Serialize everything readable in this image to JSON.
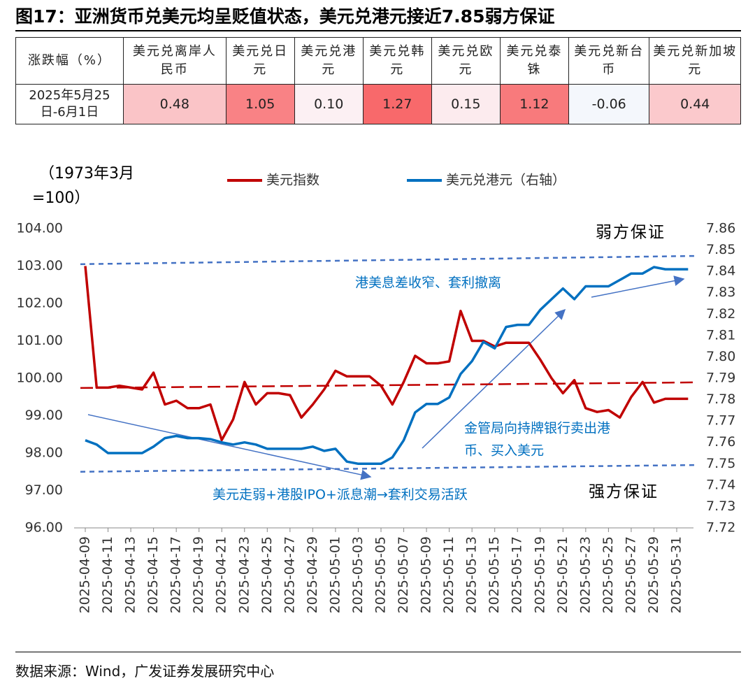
{
  "title": "图17：亚洲货币兑美元均呈贬值状态，美元兑港元接近7.85弱方保证",
  "table": {
    "header": [
      "涨跌幅（%）",
      "美元兑离岸人民币",
      "美元兑日元",
      "美元兑港元",
      "美元兑韩元",
      "美元兑欧元",
      "美元兑泰铢",
      "美元兑新台币",
      "美元兑新加坡元"
    ],
    "rows": [
      [
        "2025年5月25日-6月1日",
        "0.48",
        "1.05",
        "0.10",
        "1.27",
        "0.15",
        "1.12",
        "-0.06",
        "0.44"
      ]
    ]
  },
  "chart_data": {
    "type": "line",
    "y_label": [
      "（1973年3月",
      "=100）"
    ],
    "categories": [
      "2025-04-09",
      null,
      "2025-04-11",
      null,
      "2025-04-13",
      null,
      "2025-04-15",
      null,
      "2025-04-17",
      null,
      "2025-04-19",
      null,
      "2025-04-21",
      null,
      "2025-04-23",
      null,
      "2025-04-25",
      null,
      "2025-04-27",
      null,
      "2025-04-29",
      null,
      "2025-05-01",
      null,
      "2025-05-03",
      null,
      "2025-05-05",
      null,
      "2025-05-07",
      null,
      "2025-05-09",
      null,
      "2025-05-11",
      null,
      "2025-05-13",
      null,
      "2025-05-15",
      null,
      "2025-05-17",
      null,
      "2025-05-19",
      null,
      "2025-05-21",
      null,
      "2025-05-23",
      null,
      "2025-05-25",
      null,
      "2025-05-27",
      null,
      "2025-05-29",
      null,
      "2025-05-31",
      null
    ],
    "series": [
      {
        "name": "美元指数",
        "color": "#c00000",
        "values": [
          103.0,
          99.75,
          99.75,
          99.8,
          99.75,
          99.7,
          100.15,
          99.3,
          99.4,
          99.2,
          99.2,
          99.3,
          98.35,
          98.9,
          99.9,
          99.3,
          99.6,
          99.6,
          99.55,
          98.95,
          99.3,
          99.7,
          100.2,
          100.05,
          100.05,
          100.05,
          99.8,
          99.3,
          99.9,
          100.6,
          100.4,
          100.4,
          100.45,
          101.8,
          101.0,
          101.0,
          100.85,
          100.95,
          100.95,
          100.95,
          100.5,
          100.0,
          99.6,
          99.95,
          99.2,
          99.1,
          99.15,
          98.95,
          99.5,
          99.9,
          99.35,
          99.45,
          99.45,
          99.45
        ]
      },
      {
        "name": "美元兑港元（右轴）",
        "color": "#0070c0",
        "axis": "y2",
        "values": [
          7.761,
          7.759,
          7.755,
          7.755,
          7.755,
          7.755,
          7.758,
          7.762,
          7.763,
          7.762,
          7.762,
          7.7615,
          7.76,
          7.759,
          7.76,
          7.759,
          7.757,
          7.757,
          7.757,
          7.757,
          7.758,
          7.756,
          7.757,
          7.751,
          7.75,
          7.75,
          7.75,
          7.753,
          7.761,
          7.774,
          7.778,
          7.778,
          7.781,
          7.792,
          7.798,
          7.807,
          7.804,
          7.814,
          7.815,
          7.815,
          7.822,
          7.827,
          7.832,
          7.827,
          7.833,
          7.833,
          7.833,
          7.836,
          7.839,
          7.839,
          7.842,
          7.841,
          7.841,
          7.841
        ]
      }
    ],
    "trend_lines": [
      {
        "color": "#c00000",
        "values": [
          99.74,
          99.89
        ]
      },
      {
        "color": "#4472c4",
        "values": [
          103.05,
          103.27
        ]
      },
      {
        "color": "#4472c4",
        "values": [
          97.5,
          97.68
        ]
      }
    ],
    "ylim": [
      96,
      104
    ],
    "yticks": [
      {
        "value": 96,
        "label": "96.00"
      },
      {
        "value": 97,
        "label": "97.00"
      },
      {
        "value": 98,
        "label": "98.00"
      },
      {
        "value": 99,
        "label": "99.00"
      },
      {
        "value": 100,
        "label": "100.00"
      },
      {
        "value": 101,
        "label": "101.00"
      },
      {
        "value": 102,
        "label": "102.00"
      },
      {
        "value": 103,
        "label": "103.00"
      },
      {
        "value": 104,
        "label": "104.00"
      }
    ],
    "y2lim": [
      7.72,
      7.86
    ],
    "y2ticks": [
      7.72,
      7.73,
      7.74,
      7.75,
      7.76,
      7.77,
      7.78,
      7.79,
      {
        "value": 7.8,
        "label": "7.80"
      },
      7.81,
      7.82,
      7.83,
      7.84,
      7.85,
      7.86
    ],
    "annotations": {
      "weak": "弱方保证",
      "strong": "强方保证",
      "spread": "港美息差收窄、套利撤离",
      "hkma": [
        "金管局向持牌银行卖出港",
        "币、买入美元"
      ],
      "carry": "美元走弱+港股IPO+派息潮→套利交易活跃"
    }
  },
  "source": "数据来源：Wind，广发证券发展研究中心"
}
